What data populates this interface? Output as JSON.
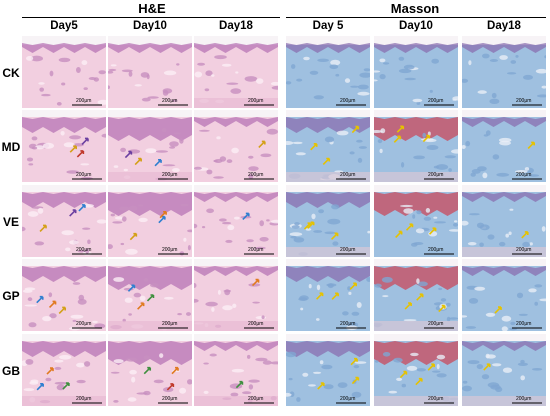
{
  "groups": [
    {
      "title": "H&E",
      "columns": [
        "Day5",
        "Day10",
        "Day18"
      ]
    },
    {
      "title": "Masson",
      "columns": [
        "Day 5",
        "Day10",
        "Day18"
      ]
    }
  ],
  "rows": [
    "CK",
    "MD",
    "VE",
    "GP",
    "GB"
  ],
  "scale_label": "200μm",
  "stain_colors": {
    "he_dermis": "#f2cfe0",
    "he_epidermis": "#b774b6",
    "masson_dermis": "#9fc0e0",
    "masson_muscle": "#c94a5c"
  },
  "arrow_colors": [
    "#3f8f3f",
    "#c0392b",
    "#6a3fa0",
    "#d4a017",
    "#2f7fd0",
    "#e07a1f"
  ]
}
